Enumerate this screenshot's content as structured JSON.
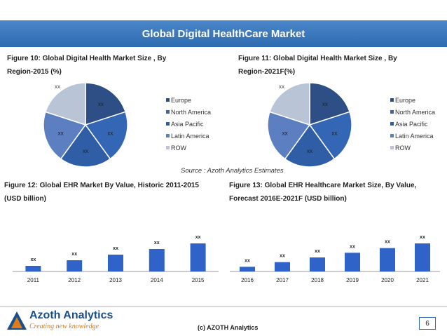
{
  "header": {
    "title": "Global Digital HealthCare Market"
  },
  "captions": {
    "fig10": {
      "line1": "Figure 10: Global Digital Health Market Size , By",
      "line2": "Region-2015 (%)"
    },
    "fig11": {
      "line1": "Figure 11: Global Digital Health Market Size , By",
      "line2": "Region-2021F(%)"
    },
    "fig12": {
      "line1": "Figure 12: Global EHR Market By Value, Historic 2011-2015",
      "line2": "(USD billion)"
    },
    "fig13": {
      "line1": "Figure 13: Global EHR Healthcare Market Size, By Value,",
      "line2": "Forecast 2016E-2021F (USD billion)"
    }
  },
  "source": "Source : Azoth Analytics Estimates",
  "footer": {
    "brand": "Azoth Analytics",
    "tagline": "Creating new knowledge",
    "copyright": "(c) AZOTH Analytics",
    "page_number": "6"
  },
  "colors": {
    "europe": "#2e4f86",
    "north_america": "#3366b4",
    "asia_pacific": "#2f5ea6",
    "latin_america": "#5b7fc0",
    "row": "#b9c4d6",
    "bar": "#2f63c8"
  },
  "chart_data": [
    {
      "type": "pie",
      "labels": [
        "Europe",
        "North America",
        "Asia Pacific",
        "Latin America",
        "ROW"
      ],
      "values": [
        20,
        20,
        20,
        20,
        20
      ],
      "slice_labels": [
        "xx",
        "xx",
        "xx",
        "xx",
        "xx"
      ],
      "legend": "right"
    },
    {
      "type": "pie",
      "labels": [
        "Europe",
        "North America",
        "Asia Pacific",
        "Latin America",
        "ROW"
      ],
      "values": [
        20,
        20,
        20,
        20,
        20
      ],
      "slice_labels": [
        "xx",
        "xx",
        "xx",
        "xx",
        "xx"
      ],
      "legend": "right"
    },
    {
      "type": "bar",
      "categories": [
        "2011",
        "2012",
        "2013",
        "2014",
        "2015"
      ],
      "values": [
        1,
        2,
        3,
        4,
        5
      ],
      "data_labels": [
        "xx",
        "xx",
        "xx",
        "xx",
        "xx"
      ]
    },
    {
      "type": "bar",
      "categories": [
        "2016",
        "2017",
        "2018",
        "2019",
        "2020",
        "2021"
      ],
      "values": [
        1,
        2,
        3,
        4,
        5,
        6
      ],
      "data_labels": [
        "xx",
        "xx",
        "xx",
        "xx",
        "xx",
        "xx"
      ]
    }
  ]
}
